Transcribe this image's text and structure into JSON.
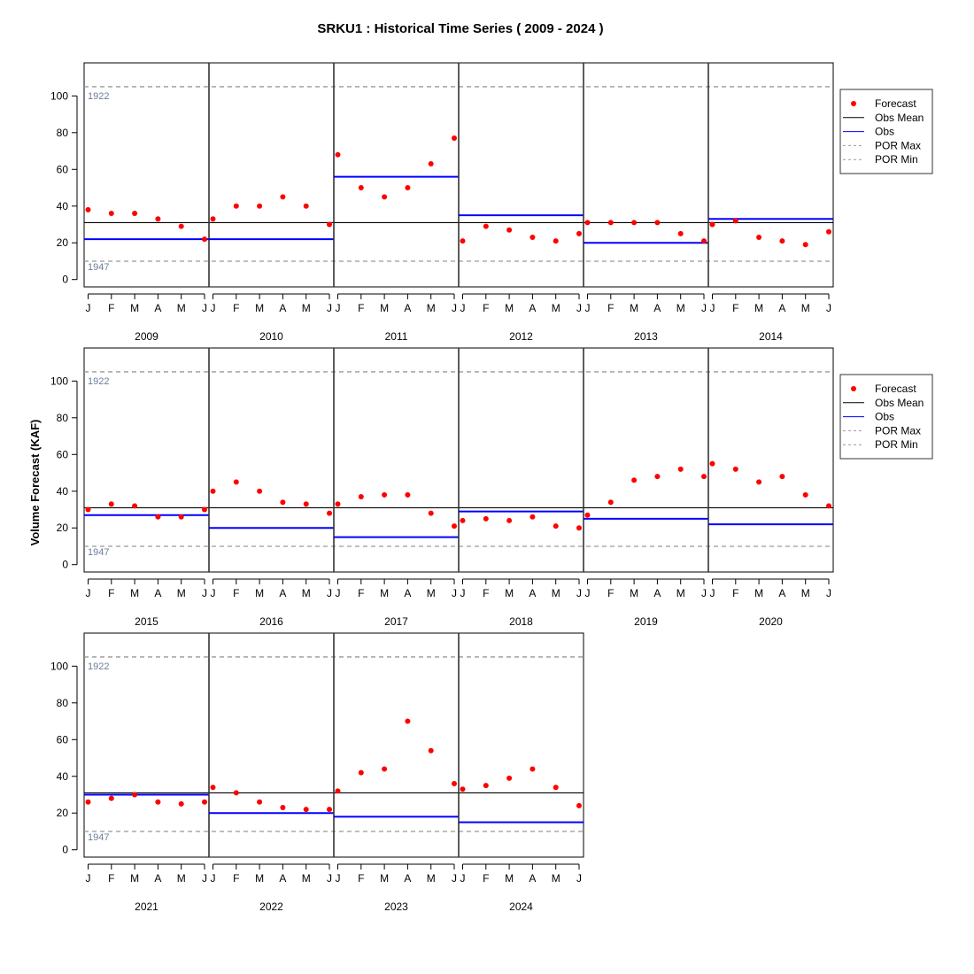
{
  "chart_data": {
    "type": "scatter",
    "title": "SRKU1 : Historical Time Series ( 2009 - 2024 )",
    "ylabel": "Volume Forecast (KAF)",
    "ylim": [
      -4,
      118
    ],
    "yticks": [
      0,
      20,
      40,
      60,
      80,
      100
    ],
    "month_labels": [
      "J",
      "F",
      "M",
      "A",
      "M",
      "J"
    ],
    "obs_mean": 31,
    "por_max": 105,
    "por_min": 10,
    "por_max_label": "1922",
    "por_min_label": "1947",
    "legend": {
      "placement": "right",
      "items": [
        "Forecast",
        "Obs Mean",
        "Obs",
        "POR Max",
        "POR Min"
      ]
    },
    "colors": {
      "forecast": "#ff0000",
      "obs": "#0000ff",
      "obs_mean": "#000000",
      "por": "#999999",
      "annotation": "#6b7f99"
    },
    "rows": [
      {
        "years": [
          {
            "year": "2009",
            "obs": 22,
            "forecast": [
              38,
              36,
              36,
              33,
              29,
              22
            ]
          },
          {
            "year": "2010",
            "obs": 22,
            "forecast": [
              33,
              40,
              40,
              45,
              40,
              30
            ]
          },
          {
            "year": "2011",
            "obs": 56,
            "forecast": [
              68,
              50,
              45,
              50,
              63,
              77
            ]
          },
          {
            "year": "2012",
            "obs": 35,
            "forecast": [
              21,
              29,
              27,
              23,
              21,
              25
            ]
          },
          {
            "year": "2013",
            "obs": 20,
            "forecast": [
              31,
              31,
              31,
              31,
              25,
              21
            ]
          },
          {
            "year": "2014",
            "obs": 33,
            "forecast": [
              30,
              32,
              23,
              21,
              19,
              26
            ]
          }
        ]
      },
      {
        "years": [
          {
            "year": "2015",
            "obs": 27,
            "forecast": [
              30,
              33,
              32,
              26,
              26,
              30
            ]
          },
          {
            "year": "2016",
            "obs": 20,
            "forecast": [
              40,
              45,
              40,
              34,
              33,
              28
            ]
          },
          {
            "year": "2017",
            "obs": 15,
            "forecast": [
              33,
              37,
              38,
              38,
              28,
              21
            ]
          },
          {
            "year": "2018",
            "obs": 29,
            "forecast": [
              24,
              25,
              24,
              26,
              21,
              20
            ]
          },
          {
            "year": "2019",
            "obs": 25,
            "forecast": [
              27,
              34,
              46,
              48,
              52,
              48
            ]
          },
          {
            "year": "2020",
            "obs": 22,
            "forecast": [
              55,
              52,
              45,
              48,
              38,
              32
            ]
          }
        ]
      },
      {
        "years": [
          {
            "year": "2021",
            "obs": 30,
            "forecast": [
              26,
              28,
              30,
              26,
              25,
              26
            ]
          },
          {
            "year": "2022",
            "obs": 20,
            "forecast": [
              34,
              31,
              26,
              23,
              22,
              22
            ]
          },
          {
            "year": "2023",
            "obs": 18,
            "forecast": [
              32,
              42,
              44,
              70,
              54,
              36
            ]
          },
          {
            "year": "2024",
            "obs": 15,
            "forecast": [
              33,
              35,
              39,
              44,
              34,
              24
            ]
          }
        ]
      }
    ]
  }
}
